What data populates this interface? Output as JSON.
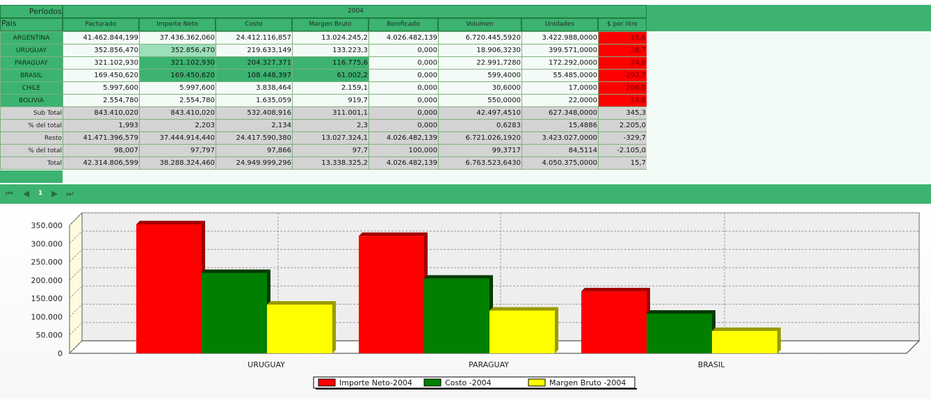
{
  "header": {
    "periods_label": "Períodos",
    "country_label": "Pais",
    "year": "2004",
    "columns": [
      "Facturado",
      "Importe Neto",
      "Costo",
      "Margen Bruto",
      "Bonificado",
      "Volumen",
      "Unidades",
      "$ por litro"
    ]
  },
  "rows": [
    {
      "label": "ARGENTINA",
      "values": [
        "41.462.844,199",
        "37.436.362,060",
        "24.412.116,857",
        "13.024.245,2",
        "4.026.482,139",
        "6.720.445,5920",
        "3.422.988,0000",
        "15,6"
      ]
    },
    {
      "label": "URUGUAY",
      "values": [
        "352.856,470",
        "352.856,470",
        "219.633,149",
        "133.223,3",
        "0,000",
        "18.906,3230",
        "399.571,0000",
        "28,7"
      ]
    },
    {
      "label": "PARAGUAY",
      "values": [
        "321.102,930",
        "321.102,930",
        "204.327,371",
        "116.775,6",
        "0,000",
        "22.991,7280",
        "172.292,0000",
        "24,0"
      ]
    },
    {
      "label": "BRASIL",
      "values": [
        "169.450,620",
        "169.450,620",
        "108.448,397",
        "61.002,2",
        "0,000",
        "599,4000",
        "55.485,0000",
        "292,7"
      ]
    },
    {
      "label": "CHILE",
      "values": [
        "5.997,600",
        "5.997,600",
        "3.838,464",
        "2.159,1",
        "0,000",
        "30,6000",
        "17,0000",
        "206,0"
      ]
    },
    {
      "label": "BOLIVIA",
      "values": [
        "2.554,780",
        "2.554,780",
        "1.635,059",
        "919,7",
        "0,000",
        "550,0000",
        "22,0000",
        "14,6"
      ]
    }
  ],
  "summary": [
    {
      "label": "Sub Total",
      "values": [
        "843.410,020",
        "843.410,020",
        "532.408,916",
        "311.001,1",
        "0,000",
        "42.497,4510",
        "627.348,0000",
        "345,3"
      ]
    },
    {
      "label": "% del total",
      "values": [
        "1,993",
        "2,203",
        "2,134",
        "2,3",
        "0,000",
        "0,6283",
        "15,4886",
        "2.205,0"
      ]
    },
    {
      "label": "Resto",
      "values": [
        "41.471.396,579",
        "37.444.914,440",
        "24.417.590,380",
        "13.027.324,1",
        "4.026.482,139",
        "6.721.026,1920",
        "3.423.027,0000",
        "-329,7"
      ]
    },
    {
      "label": "% del total",
      "values": [
        "98,007",
        "97,797",
        "97,866",
        "97,7",
        "100,000",
        "99,3717",
        "84,5114",
        "-2.105,0"
      ]
    },
    {
      "label": "Total",
      "values": [
        "42.314.806,599",
        "38.288.324,460",
        "24.949.999,296",
        "13.338.325,2",
        "4.026.482,139",
        "6.763.523,6430",
        "4.050.375,0000",
        "15,7"
      ]
    }
  ],
  "pager": {
    "page": "1"
  },
  "colors": {
    "header_green": "#3cb371",
    "highlight_red": "#ff0000",
    "series_red": "#ff0000",
    "series_green": "#008000",
    "series_yellow": "#ffff00"
  },
  "chart_data": {
    "type": "bar",
    "categories": [
      "URUGUAY",
      "PARAGUAY",
      "BRASIL"
    ],
    "series": [
      {
        "name": "Importe Neto-2004",
        "color": "#ff0000",
        "values": [
          352856.47,
          321102.93,
          169450.62
        ]
      },
      {
        "name": "Costo -2004",
        "color": "#008000",
        "values": [
          219633.149,
          204327.371,
          108448.397
        ]
      },
      {
        "name": "Margen Bruto -2004",
        "color": "#ffff00",
        "values": [
          133223.3,
          116775.6,
          61002.2
        ]
      }
    ],
    "ylim": [
      0,
      350000
    ],
    "yticks": [
      "0",
      "50.000",
      "100.000",
      "150.000",
      "200.000",
      "250.000",
      "300.000",
      "350.000"
    ],
    "grid": true,
    "legend_position": "bottom"
  }
}
